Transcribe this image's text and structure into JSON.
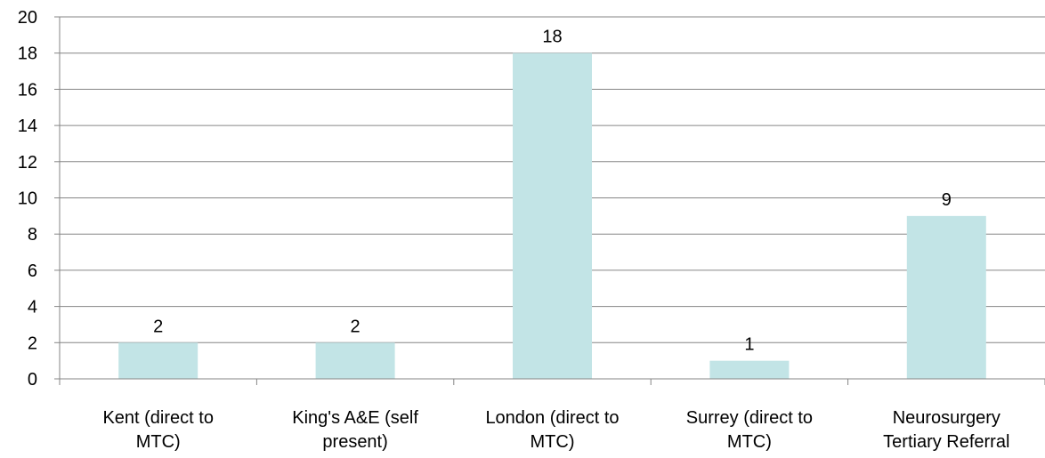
{
  "chart_data": {
    "type": "bar",
    "categories": [
      [
        "Kent (direct to",
        "MTC)"
      ],
      [
        "King's A&E (self",
        "present)"
      ],
      [
        "London (direct to",
        "MTC)"
      ],
      [
        "Surrey (direct to",
        "MTC)"
      ],
      [
        "Neurosurgery",
        "Tertiary Referral"
      ]
    ],
    "values": [
      2,
      2,
      18,
      1,
      9
    ],
    "data_labels": [
      "2",
      "2",
      "18",
      "1",
      "9"
    ],
    "ylim": [
      0,
      20
    ],
    "yticks": [
      "0",
      "2",
      "4",
      "6",
      "8",
      "10",
      "12",
      "14",
      "16",
      "18",
      "20"
    ],
    "grid": true,
    "legend": "none",
    "title": "",
    "xlabel": "",
    "ylabel": "",
    "colors": {
      "bar": "#c2e4e6",
      "grid": "#868686",
      "axis": "#868686",
      "text": "#000000"
    }
  }
}
